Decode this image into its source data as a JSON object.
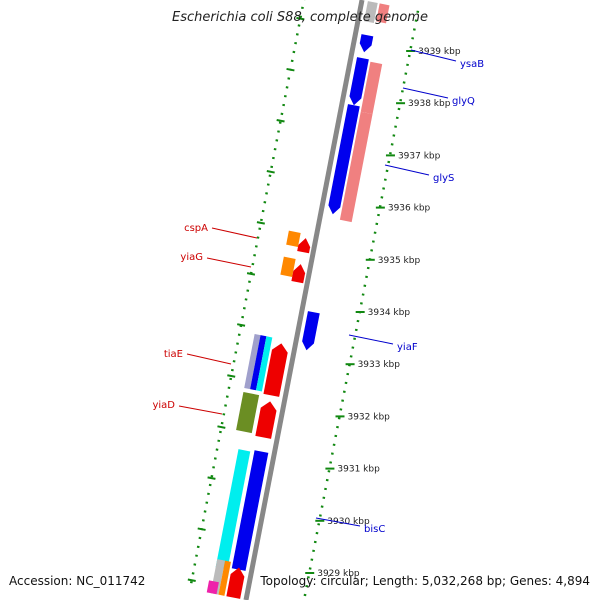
{
  "title": "Escherichia coli S88, complete genome",
  "footer": {
    "accession": "Accession: NC_011742",
    "summary": "Topology: circular; Length: 5,032,268 bp; Genes: 4,894"
  },
  "ticks": [
    {
      "label": "3939 kbp",
      "kbp": 3939
    },
    {
      "label": "3938 kbp",
      "kbp": 3938
    },
    {
      "label": "3937 kbp",
      "kbp": 3937
    },
    {
      "label": "3936 kbp",
      "kbp": 3936
    },
    {
      "label": "3935 kbp",
      "kbp": 3935
    },
    {
      "label": "3934 kbp",
      "kbp": 3934
    },
    {
      "label": "3933 kbp",
      "kbp": 3933
    },
    {
      "label": "3932 kbp",
      "kbp": 3932
    },
    {
      "label": "3931 kbp",
      "kbp": 3931
    },
    {
      "label": "3930 kbp",
      "kbp": 3930
    },
    {
      "label": "3929 kbp",
      "kbp": 3929
    }
  ],
  "gene_labels": [
    {
      "name": "ysaB",
      "color": "#0000cc",
      "side": "right"
    },
    {
      "name": "glyQ",
      "color": "#0000cc",
      "side": "right"
    },
    {
      "name": "glyS",
      "color": "#0000cc",
      "side": "right"
    },
    {
      "name": "yiaF",
      "color": "#0000cc",
      "side": "right"
    },
    {
      "name": "bisC",
      "color": "#0000cc",
      "side": "right"
    },
    {
      "name": "cspA",
      "color": "#cc0000",
      "side": "left"
    },
    {
      "name": "yiaG",
      "color": "#cc0000",
      "side": "left"
    },
    {
      "name": "tiaE",
      "color": "#cc0000",
      "side": "left"
    },
    {
      "name": "yiaD",
      "color": "#cc0000",
      "side": "left"
    }
  ],
  "colors": {
    "backbone": "#888888",
    "tick_green": "#118811",
    "blue": "#0000ee",
    "salmon": "#f08080",
    "red": "#ee0000",
    "orange": "#ff8800",
    "cyan": "#00eeee",
    "olive": "#6b8e23",
    "magenta": "#ee22aa"
  }
}
